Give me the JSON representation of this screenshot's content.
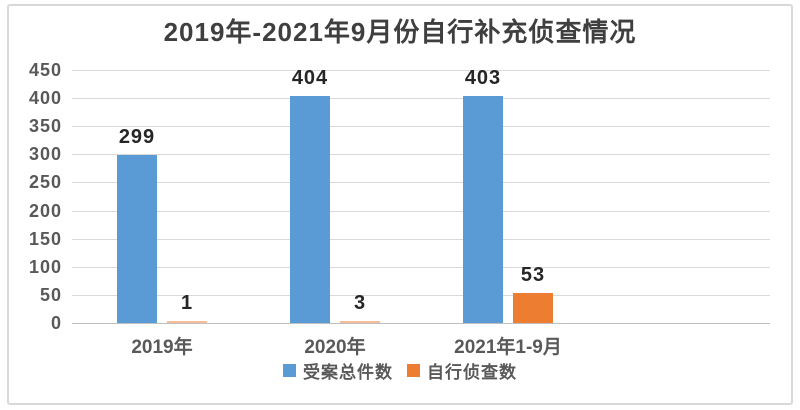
{
  "chart_data": {
    "type": "bar",
    "title": "2019年-2021年9月份自行补充侦查情况",
    "categories": [
      "2019年",
      "2020年",
      "2021年1-9月"
    ],
    "series": [
      {
        "name": "受案总件数",
        "color": "#5B9BD5",
        "values": [
          299,
          404,
          403
        ]
      },
      {
        "name": "自行侦查数",
        "color": "#ED7D31",
        "values": [
          1,
          3,
          53
        ]
      }
    ],
    "ylim": [
      0,
      450
    ],
    "yticks": [
      0,
      50,
      100,
      150,
      200,
      250,
      300,
      350,
      400,
      450
    ],
    "grid": true,
    "data_labels": true,
    "legend_position": "bottom"
  },
  "styles": {
    "title_color": "#3f3f3f",
    "axis_label_color": "#595959",
    "data_label_color": "#262626",
    "gridline_color": "#d9d9d9",
    "axis_line_color": "#bfbfbf",
    "frame_border_color": "#d9d9d9",
    "background": "#ffffff"
  }
}
